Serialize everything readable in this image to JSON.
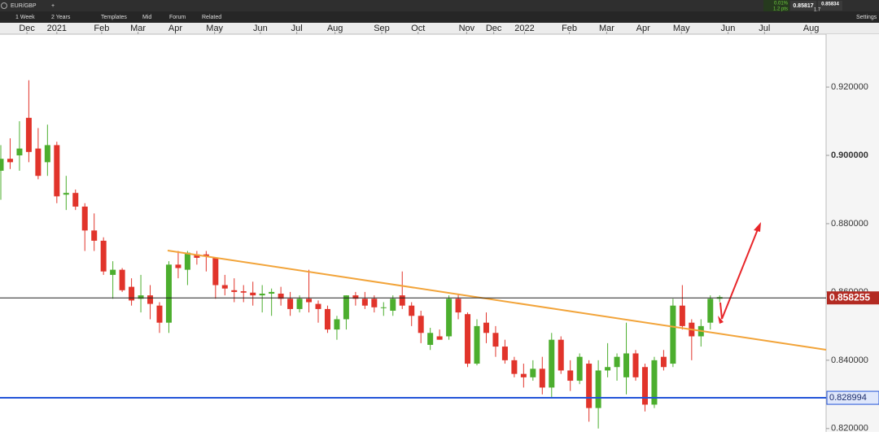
{
  "toolbar": {
    "symbol": "EUR/GBP",
    "add": "+",
    "interval": "1 Week",
    "range": "2 Years",
    "templates": "Templates",
    "mid": "Mid",
    "forum": "Forum",
    "related": "Related",
    "change_pct": "0.01%",
    "change_pts": "1.2 pts",
    "bid": "0.85817",
    "ask": "0.85834",
    "spread": "1.7",
    "settings": "Settings"
  },
  "chart_data": {
    "type": "candlestick",
    "open": [
      0.8955,
      0.899,
      0.9,
      0.911,
      0.902,
      0.898,
      0.903,
      0.8885,
      0.889,
      0.885,
      0.878,
      0.875,
      0.865,
      0.8665,
      0.8615,
      0.858,
      0.859,
      0.856,
      0.851,
      0.868,
      0.8665,
      0.871,
      0.871,
      0.87,
      0.862,
      0.8605,
      0.8602,
      0.8598,
      0.859,
      0.8595,
      0.8595,
      0.858,
      0.855,
      0.858,
      0.8565,
      0.855,
      0.849,
      0.852,
      0.859,
      0.858,
      0.858,
      0.8555,
      0.8545,
      0.859,
      0.856,
      0.853,
      0.8445,
      0.847,
      0.847,
      0.858,
      0.8535,
      0.839,
      0.851,
      0.848,
      0.844,
      0.84,
      0.836,
      0.835,
      0.8375,
      0.832,
      0.846,
      0.837,
      0.834,
      0.839,
      0.826,
      0.837,
      0.838,
      0.835,
      0.842,
      0.838,
      0.827,
      0.841,
      0.839,
      0.856,
      0.851,
      0.847,
      0.851,
      0.858
    ],
    "high": [
      0.903,
      0.905,
      0.91,
      0.922,
      0.908,
      0.909,
      0.904,
      0.894,
      0.89,
      0.886,
      0.883,
      0.876,
      0.869,
      0.867,
      0.864,
      0.865,
      0.862,
      0.857,
      0.869,
      0.872,
      0.872,
      0.872,
      0.872,
      0.87,
      0.865,
      0.864,
      0.862,
      0.863,
      0.862,
      0.861,
      0.8615,
      0.86,
      0.859,
      0.8665,
      0.8575,
      0.856,
      0.853,
      0.859,
      0.86,
      0.86,
      0.859,
      0.857,
      0.859,
      0.866,
      0.857,
      0.8545,
      0.8495,
      0.849,
      0.859,
      0.8595,
      0.854,
      0.852,
      0.854,
      0.85,
      0.846,
      0.841,
      0.839,
      0.84,
      0.841,
      0.848,
      0.847,
      0.84,
      0.842,
      0.84,
      0.84,
      0.845,
      0.842,
      0.851,
      0.843,
      0.839,
      0.841,
      0.843,
      0.858,
      0.862,
      0.852,
      0.852,
      0.859,
      0.859
    ],
    "low": [
      0.887,
      0.896,
      0.8955,
      0.898,
      0.893,
      0.894,
      0.886,
      0.884,
      0.884,
      0.872,
      0.872,
      0.865,
      0.858,
      0.86,
      0.856,
      0.854,
      0.852,
      0.848,
      0.848,
      0.864,
      0.862,
      0.868,
      0.866,
      0.858,
      0.859,
      0.857,
      0.857,
      0.856,
      0.854,
      0.853,
      0.856,
      0.853,
      0.854,
      0.854,
      0.851,
      0.848,
      0.846,
      0.849,
      0.856,
      0.855,
      0.854,
      0.853,
      0.853,
      0.855,
      0.85,
      0.845,
      0.843,
      0.846,
      0.846,
      0.852,
      0.838,
      0.8385,
      0.845,
      0.841,
      0.839,
      0.835,
      0.832,
      0.834,
      0.83,
      0.829,
      0.836,
      0.831,
      0.833,
      0.822,
      0.82,
      0.835,
      0.834,
      0.83,
      0.834,
      0.825,
      0.826,
      0.837,
      0.838,
      0.849,
      0.84,
      0.844,
      0.849,
      0.857
    ],
    "close": [
      0.899,
      0.898,
      0.902,
      0.901,
      0.894,
      0.903,
      0.888,
      0.889,
      0.885,
      0.878,
      0.875,
      0.866,
      0.8665,
      0.8605,
      0.8575,
      0.859,
      0.8565,
      0.851,
      0.868,
      0.867,
      0.8715,
      0.87,
      0.8705,
      0.862,
      0.861,
      0.86,
      0.8598,
      0.859,
      0.8595,
      0.86,
      0.858,
      0.855,
      0.858,
      0.857,
      0.855,
      0.849,
      0.852,
      0.859,
      0.858,
      0.856,
      0.8555,
      0.8555,
      0.858,
      0.856,
      0.853,
      0.848,
      0.848,
      0.846,
      0.858,
      0.854,
      0.839,
      0.85,
      0.848,
      0.844,
      0.84,
      0.836,
      0.835,
      0.8375,
      0.832,
      0.846,
      0.837,
      0.834,
      0.841,
      0.826,
      0.837,
      0.838,
      0.841,
      0.842,
      0.835,
      0.827,
      0.84,
      0.838,
      0.856,
      0.85,
      0.847,
      0.85,
      0.858,
      0.8585
    ],
    "up_color": "#4cae2e",
    "down_color": "#e1342b",
    "xlim": [
      -0.087,
      88.4
    ],
    "xticks": [
      {
        "value": 2.8,
        "label": "Dec"
      },
      {
        "value": 6.0,
        "label": "2021"
      },
      {
        "value": 10.8,
        "label": "Feb"
      },
      {
        "value": 14.7,
        "label": "Mar"
      },
      {
        "value": 18.7,
        "label": "Apr"
      },
      {
        "value": 22.9,
        "label": "May"
      },
      {
        "value": 27.8,
        "label": "Jun"
      },
      {
        "value": 31.7,
        "label": "Jul"
      },
      {
        "value": 35.8,
        "label": "Aug"
      },
      {
        "value": 40.8,
        "label": "Sep"
      },
      {
        "value": 44.7,
        "label": "Oct"
      },
      {
        "value": 49.9,
        "label": "Nov"
      },
      {
        "value": 52.8,
        "label": "Dec"
      },
      {
        "value": 56.1,
        "label": "2022"
      },
      {
        "value": 60.9,
        "label": "Feb"
      },
      {
        "value": 64.9,
        "label": "Mar"
      },
      {
        "value": 68.8,
        "label": "Apr"
      },
      {
        "value": 72.9,
        "label": "May"
      },
      {
        "value": 77.9,
        "label": "Jun"
      },
      {
        "value": 81.8,
        "label": "Jul"
      },
      {
        "value": 86.8,
        "label": "Aug"
      }
    ],
    "ylim": [
      0.819,
      0.9355
    ],
    "yticks": [
      {
        "value": 0.82,
        "label": "0.820000"
      },
      {
        "value": 0.84,
        "label": "0.840000"
      },
      {
        "value": 0.86,
        "label": "0.860000"
      },
      {
        "value": 0.88,
        "label": "0.880000"
      },
      {
        "value": 0.9,
        "label": "0.900000"
      },
      {
        "value": 0.92,
        "label": "0.920000"
      }
    ],
    "price_lines": [
      {
        "value": 0.858255,
        "color": "#b32a22"
      },
      {
        "value": 0.828994,
        "color": "#2355d8"
      }
    ]
  }
}
